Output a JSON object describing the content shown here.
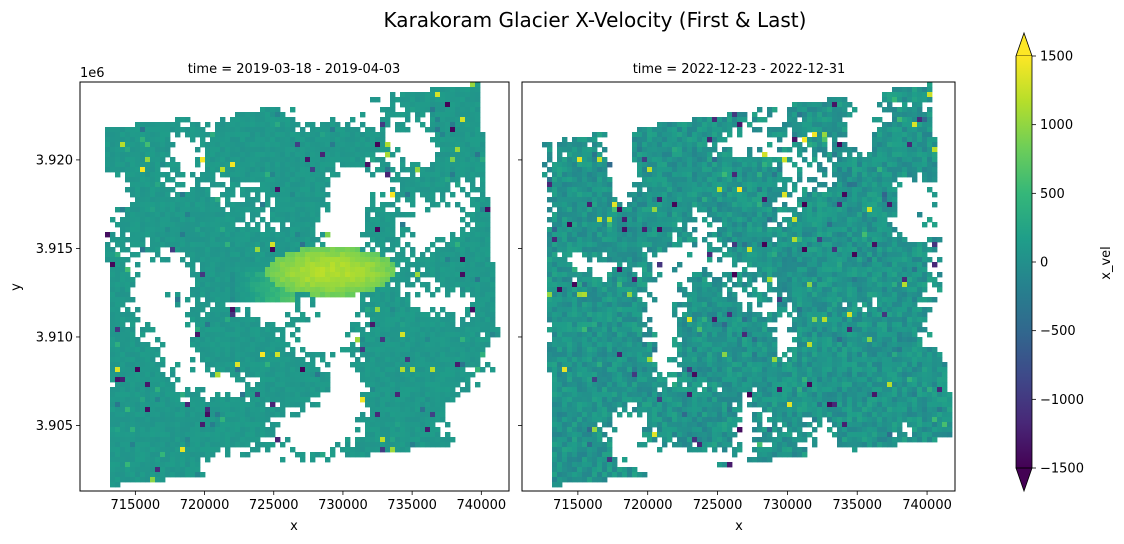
{
  "figure": {
    "title": "Karakoram Glacier X-Velocity (First & Last)"
  },
  "chart_data": [
    {
      "type": "heatmap",
      "panel": "left",
      "title": "time = 2019-03-18 - 2019-04-03",
      "xlabel": "x",
      "ylabel": "y",
      "y_offset_label": "1e6",
      "xlim": [
        711000,
        742000
      ],
      "ylim": [
        3.9013,
        3.9244
      ],
      "x_ticks": [
        715000,
        720000,
        725000,
        730000,
        735000,
        740000
      ],
      "x_tick_labels": [
        "715000",
        "720000",
        "725000",
        "730000",
        "735000",
        "740000"
      ],
      "y_ticks": [
        3.905,
        3.91,
        3.915,
        3.92
      ],
      "y_tick_labels": [
        "3.905",
        "3.910",
        "3.915",
        "3.920"
      ],
      "background_value": 100,
      "noise_amplitude": 120,
      "gap_fraction": 0.16,
      "footprint_corners": [
        [
          712800,
          3.9218
        ],
        [
          739800,
          3.9243
        ],
        [
          741800,
          3.9043
        ],
        [
          713300,
          3.9016
        ]
      ],
      "fast_flow_region": {
        "x_range": [
          724500,
          733800
        ],
        "y_range": [
          3.9123,
          3.9151
        ],
        "value": 1150
      },
      "tributary": {
        "x_range": [
          722000,
          726500
        ],
        "y_center": 3.9128,
        "value": 700
      }
    },
    {
      "type": "heatmap",
      "panel": "right",
      "title": "time = 2022-12-23 - 2022-12-31",
      "xlabel": "x",
      "ylabel": "",
      "xlim": [
        711000,
        742000
      ],
      "ylim": [
        3.9013,
        3.9244
      ],
      "x_ticks": [
        715000,
        720000,
        725000,
        730000,
        735000,
        740000
      ],
      "x_tick_labels": [
        "715000",
        "720000",
        "725000",
        "730000",
        "735000",
        "740000"
      ],
      "y_ticks": [
        3.905,
        3.91,
        3.915,
        3.92
      ],
      "background_value": 50,
      "noise_amplitude": 380,
      "gap_fraction": 0.12,
      "footprint_corners": [
        [
          712300,
          3.921
        ],
        [
          740300,
          3.9243
        ],
        [
          741800,
          3.9043
        ],
        [
          713300,
          3.9016
        ]
      ],
      "fast_flow_region": null
    }
  ],
  "colorbar": {
    "label": "x_vel",
    "vmin": -1500,
    "vmax": 1500,
    "ticks": [
      1500,
      1000,
      500,
      0,
      -500,
      -1000,
      -1500
    ],
    "tick_labels": [
      "1500",
      "1000",
      "500",
      "0",
      "−500",
      "−1000",
      "−1500"
    ],
    "colormap": "viridis",
    "colormap_stops": [
      "#440154",
      "#482878",
      "#3e4989",
      "#31688e",
      "#26828e",
      "#1f9e89",
      "#35b779",
      "#6ece58",
      "#b5de2b",
      "#fde725"
    ],
    "extend": "both",
    "under_color": "#440154",
    "over_color": "#fde725"
  }
}
